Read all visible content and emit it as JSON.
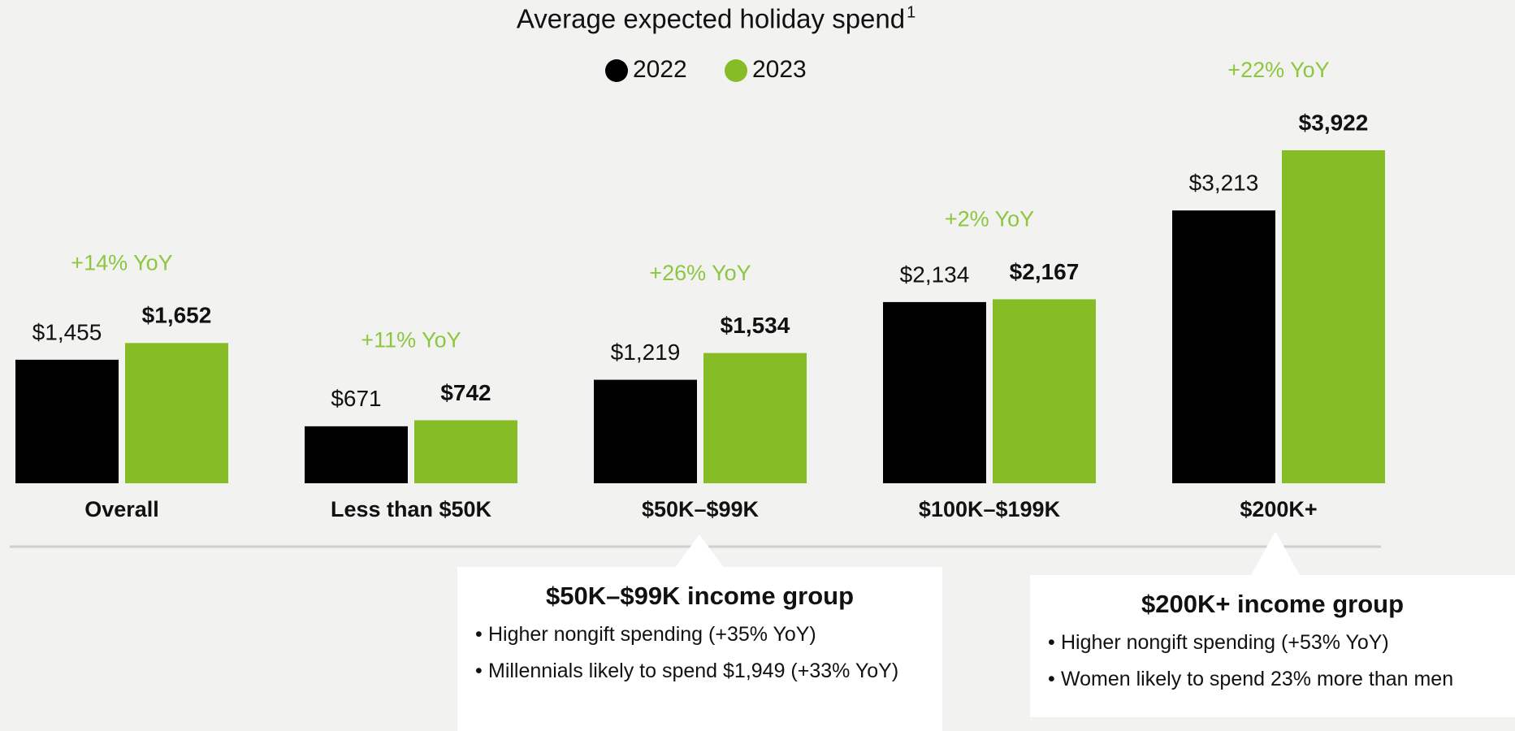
{
  "chart_data": {
    "type": "bar",
    "title": "Average expected holiday spend",
    "title_note": "1",
    "categories": [
      "Overall",
      "Less than $50K",
      "$50K–$99K",
      "$100K–$199K",
      "$200K+"
    ],
    "series": [
      {
        "name": "2022",
        "color": "#000000",
        "values": [
          1455,
          671,
          1219,
          2134,
          3213
        ],
        "value_labels": [
          "$1,455",
          "$671",
          "$1,219",
          "$2,134",
          "$3,213"
        ]
      },
      {
        "name": "2023",
        "color": "#86bc25",
        "values": [
          1652,
          742,
          1534,
          2167,
          3922
        ],
        "value_labels": [
          "$1,652",
          "$742",
          "$1,534",
          "$2,167",
          "$3,922"
        ]
      }
    ],
    "annotations": [
      "+14% YoY",
      "+11% YoY",
      "+26% YoY",
      "+2% YoY",
      "+22% YoY"
    ],
    "annotation_color": "#8dc63f",
    "legend": "top",
    "callouts": [
      {
        "title": "$50K–$99K income group",
        "category": 2,
        "bullets": [
          "Higher nongift spending (+35% YoY)",
          "Millennials likely to spend $1,949 (+33% YoY)"
        ]
      },
      {
        "title": "$200K+ income group",
        "category": 4,
        "bullets": [
          "Higher nongift spending (+53% YoY)",
          "Women likely to spend 23% more than men"
        ]
      }
    ]
  }
}
